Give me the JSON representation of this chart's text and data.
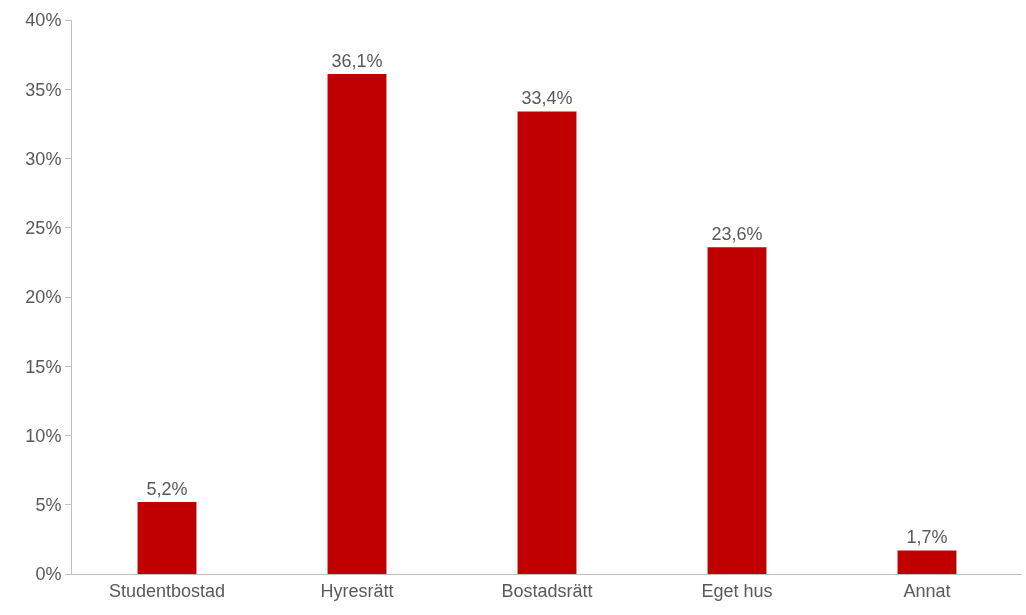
{
  "chart_data": {
    "type": "bar",
    "categories": [
      "Studentbostad",
      "Hyresrätt",
      "Bostadsrätt",
      "Eget hus",
      "Annat"
    ],
    "values": [
      5.2,
      36.1,
      33.4,
      23.6,
      1.7
    ],
    "value_labels": [
      "5,2%",
      "36,1%",
      "33,4%",
      "23,6%",
      "1,7%"
    ],
    "color": "#c00000",
    "ylim": [
      0,
      40
    ],
    "yticks": [
      {
        "value": 0,
        "label": "0%"
      },
      {
        "value": 5,
        "label": "5%"
      },
      {
        "value": 10,
        "label": "10%"
      },
      {
        "value": 15,
        "label": "15%"
      },
      {
        "value": 20,
        "label": "20%"
      },
      {
        "value": 25,
        "label": "25%"
      },
      {
        "value": 30,
        "label": "30%"
      },
      {
        "value": 35,
        "label": "35%"
      },
      {
        "value": 40,
        "label": "40%"
      }
    ],
    "grid": false
  }
}
